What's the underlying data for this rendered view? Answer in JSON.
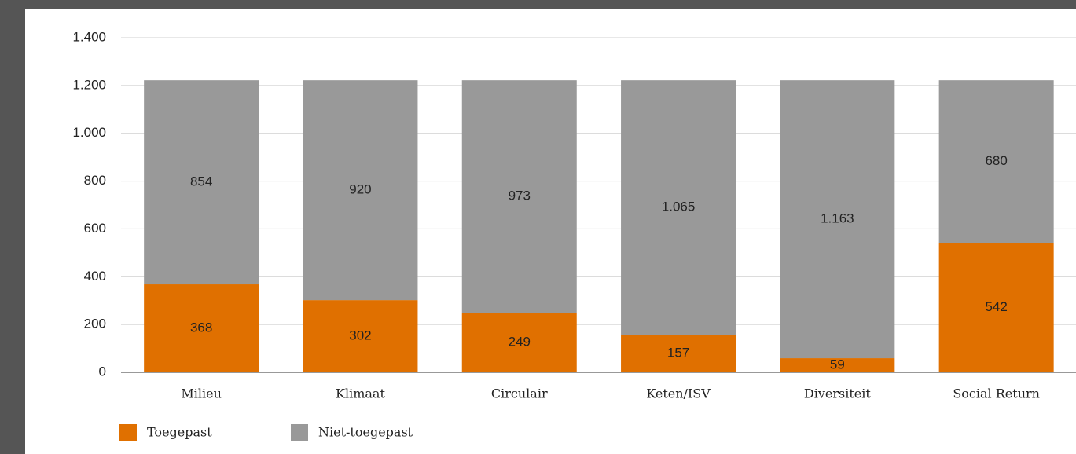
{
  "chart_data": {
    "type": "bar",
    "stacked": true,
    "categories": [
      "Milieu",
      "Klimaat",
      "Circulair",
      "Keten/ISV",
      "Diversiteit",
      "Social Return"
    ],
    "series": [
      {
        "name": "Toegepast",
        "color": "#e07000",
        "values": [
          368,
          302,
          249,
          157,
          59,
          542
        ],
        "value_labels": [
          "368",
          "302",
          "249",
          "157",
          "59",
          "542"
        ]
      },
      {
        "name": "Niet-toegepast",
        "color": "#999999",
        "values": [
          854,
          920,
          973,
          1065,
          1163,
          680
        ],
        "value_labels": [
          "854",
          "920",
          "973",
          "1.065",
          "1.163",
          "680"
        ]
      }
    ],
    "ylim": [
      0,
      1400
    ],
    "yticks": [
      0,
      200,
      400,
      600,
      800,
      {
        "value": 1000,
        "label": "1.000"
      },
      {
        "value": 1200,
        "label": "1.200"
      },
      {
        "value": 1400,
        "label": "1.400"
      }
    ],
    "grid": true,
    "legend": "bottom-left"
  }
}
